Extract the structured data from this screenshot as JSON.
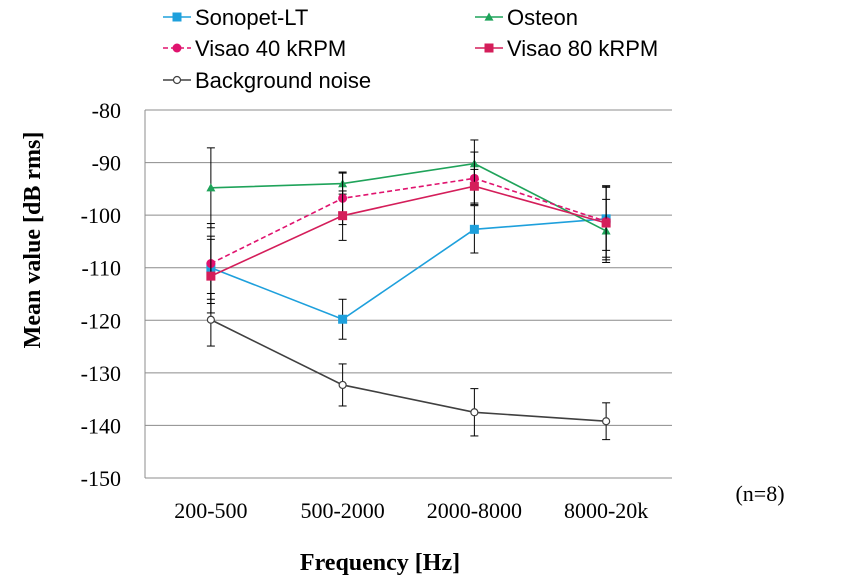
{
  "chart_data": {
    "type": "line",
    "title": "",
    "xlabel": "Frequency [Hz]",
    "ylabel": "Mean value [dB rms]",
    "categories": [
      "200-500",
      "500-2000",
      "2000-8000",
      "8000-20k"
    ],
    "ylim": [
      -150,
      -80
    ],
    "yticks": [
      -80,
      -90,
      -100,
      -110,
      -120,
      -130,
      -140,
      -150
    ],
    "grid": true,
    "legend_position": "top",
    "annotation": "(n=8)",
    "series": [
      {
        "name": "Sonopet-LT",
        "color": "#1ea0dc",
        "marker": "square",
        "dash": "solid",
        "values": [
          -110,
          -119.8,
          -102.7,
          -100.7
        ],
        "errors": [
          6,
          3.8,
          4.5,
          6
        ]
      },
      {
        "name": "Osteon",
        "color": "#1fa35a",
        "marker": "triangle",
        "dash": "solid",
        "values": [
          -94.8,
          -94,
          -90.2,
          -103
        ],
        "errors": [
          7.6,
          2,
          4.5,
          6
        ]
      },
      {
        "name": "Visao 40 kRPM",
        "color": "#e0136e",
        "marker": "circle",
        "dash": "dashed",
        "values": [
          -109.2,
          -96.8,
          -93,
          -101.2
        ],
        "errors": [
          7.6,
          5,
          5,
          6.8
        ]
      },
      {
        "name": "Visao 80 kRPM",
        "color": "#d41e5a",
        "marker": "square",
        "dash": "solid",
        "values": [
          -111.6,
          -100.1,
          -94.5,
          -101.5
        ],
        "errors": [
          7,
          4.7,
          3.2,
          7
        ]
      },
      {
        "name": "Background noise",
        "color": "#404040",
        "marker": "open-circle",
        "dash": "solid",
        "values": [
          -119.9,
          -132.3,
          -137.5,
          -139.2
        ],
        "errors": [
          5,
          4,
          4.5,
          3.5
        ]
      }
    ]
  }
}
